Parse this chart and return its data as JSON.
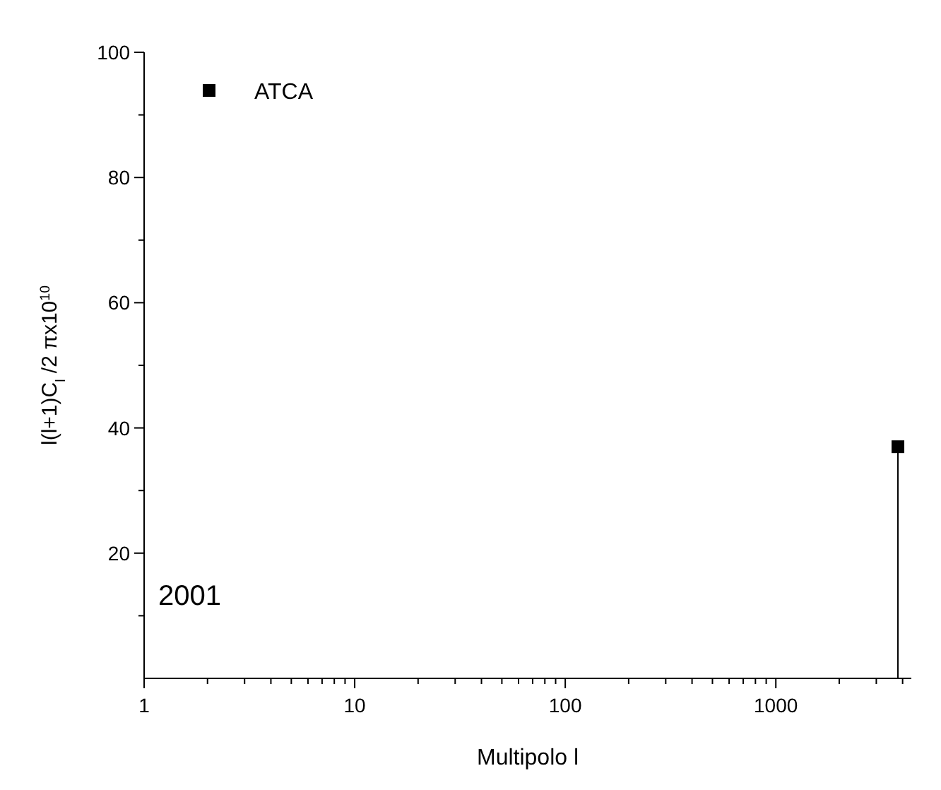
{
  "chart_data": {
    "type": "scatter",
    "xlabel": "Multipolo l",
    "ylabel": "l(l+1)C$_{l}$ /2 πx10$^{10}$",
    "log": "x",
    "xlim": [
      1,
      4400
    ],
    "ylim": [
      0,
      100
    ],
    "xticks": [
      1,
      {
        "value": 2,
        "label": null
      },
      {
        "value": 3,
        "label": null
      },
      {
        "value": 4,
        "label": null
      },
      {
        "value": 5,
        "label": null
      },
      {
        "value": 6,
        "label": null
      },
      {
        "value": 7,
        "label": null
      },
      {
        "value": 8,
        "label": null
      },
      {
        "value": 9,
        "label": null
      },
      10,
      {
        "value": 20,
        "label": null
      },
      {
        "value": 30,
        "label": null
      },
      {
        "value": 40,
        "label": null
      },
      {
        "value": 50,
        "label": null
      },
      {
        "value": 60,
        "label": null
      },
      {
        "value": 70,
        "label": null
      },
      {
        "value": 80,
        "label": null
      },
      {
        "value": 90,
        "label": null
      },
      100,
      {
        "value": 200,
        "label": null
      },
      {
        "value": 300,
        "label": null
      },
      {
        "value": 400,
        "label": null
      },
      {
        "value": 500,
        "label": null
      },
      {
        "value": 600,
        "label": null
      },
      {
        "value": 700,
        "label": null
      },
      {
        "value": 800,
        "label": null
      },
      {
        "value": 900,
        "label": null
      },
      1000,
      {
        "value": 2000,
        "label": null
      },
      {
        "value": 3000,
        "label": null
      },
      {
        "value": 4000,
        "label": null
      }
    ],
    "yticks": [
      {
        "value": 10,
        "label": null
      },
      20,
      {
        "value": 30,
        "label": null
      },
      40,
      {
        "value": 50,
        "label": null
      },
      60,
      {
        "value": 70,
        "label": null
      },
      80,
      {
        "value": 90,
        "label": null
      },
      100
    ],
    "series": [
      {
        "name": "ATCA",
        "color": "#000000",
        "x": [
          3800
        ],
        "values": [
          37
        ],
        "errors": [
          [
            37,
            0
          ]
        ]
      }
    ],
    "marker": "square",
    "legend": "top left",
    "grid": false,
    "annotations": [
      "2001"
    ]
  }
}
